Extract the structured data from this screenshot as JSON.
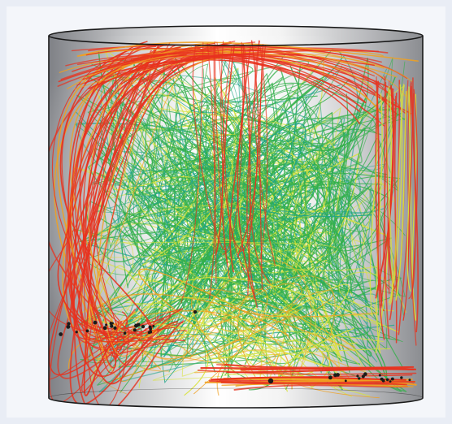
{
  "scene": {
    "colors": {
      "background": "#e9edf5",
      "vessel_light": "#ffffff",
      "vessel_dark": "#8a8c90",
      "outline": "#1a1a1a",
      "hot": "#e8321e",
      "warm": "#f0a020",
      "mid": "#d8e23a",
      "cool": "#33b04a",
      "cold": "#1fa58a"
    }
  }
}
